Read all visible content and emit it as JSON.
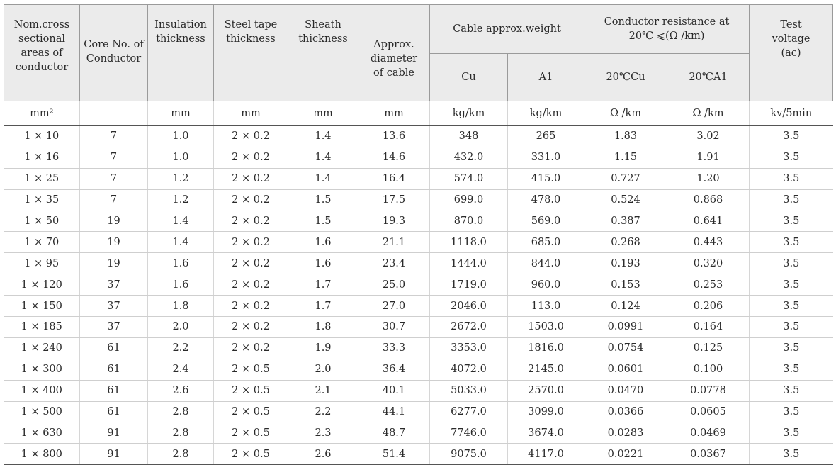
{
  "headers": {
    "nom_area": "Nom.cross sectional areas of conductor",
    "core_no": "Core No. of Conductor",
    "insulation": "Insulation thickness",
    "steel_tape": "Steel tape thickness",
    "sheath": "Sheath thickness",
    "diameter": "Approx. diameter of cable",
    "weight": "Cable approx.weight",
    "weight_cu": "Cu",
    "weight_al": "A1",
    "resistance": "Conductor resistance at 20℃ ⩽(Ω /km)",
    "res_cu": "20℃Cu",
    "res_al": "20℃A1",
    "test_voltage": "Test voltage (ac)"
  },
  "units": {
    "nom_area": "mm²",
    "core_no": "",
    "insulation": "mm",
    "steel_tape": "mm",
    "sheath": "mm",
    "diameter": "mm",
    "weight_cu": "kg/km",
    "weight_al": "kg/km",
    "res_cu": "Ω /km",
    "res_al": "Ω /km",
    "test_voltage": "kv/5min"
  },
  "rows": [
    [
      "1 × 10",
      "7",
      "1.0",
      "2 × 0.2",
      "1.4",
      "13.6",
      "348",
      "265",
      "1.83",
      "3.02",
      "3.5"
    ],
    [
      "1 × 16",
      "7",
      "1.0",
      "2 × 0.2",
      "1.4",
      "14.6",
      "432.0",
      "331.0",
      "1.15",
      "1.91",
      "3.5"
    ],
    [
      "1 × 25",
      "7",
      "1.2",
      "2 × 0.2",
      "1.4",
      "16.4",
      "574.0",
      "415.0",
      "0.727",
      "1.20",
      "3.5"
    ],
    [
      "1 × 35",
      "7",
      "1.2",
      "2 × 0.2",
      "1.5",
      "17.5",
      "699.0",
      "478.0",
      "0.524",
      "0.868",
      "3.5"
    ],
    [
      "1 × 50",
      "19",
      "1.4",
      "2 × 0.2",
      "1.5",
      "19.3",
      "870.0",
      "569.0",
      "0.387",
      "0.641",
      "3.5"
    ],
    [
      "1 × 70",
      "19",
      "1.4",
      "2 × 0.2",
      "1.6",
      "21.1",
      "1118.0",
      "685.0",
      "0.268",
      "0.443",
      "3.5"
    ],
    [
      "1 × 95",
      "19",
      "1.6",
      "2 × 0.2",
      "1.6",
      "23.4",
      "1444.0",
      "844.0",
      "0.193",
      "0.320",
      "3.5"
    ],
    [
      "1 × 120",
      "37",
      "1.6",
      "2 × 0.2",
      "1.7",
      "25.0",
      "1719.0",
      "960.0",
      "0.153",
      "0.253",
      "3.5"
    ],
    [
      "1 × 150",
      "37",
      "1.8",
      "2 × 0.2",
      "1.7",
      "27.0",
      "2046.0",
      "113.0",
      "0.124",
      "0.206",
      "3.5"
    ],
    [
      "1 × 185",
      "37",
      "2.0",
      "2 × 0.2",
      "1.8",
      "30.7",
      "2672.0",
      "1503.0",
      "0.0991",
      "0.164",
      "3.5"
    ],
    [
      "1 × 240",
      "61",
      "2.2",
      "2 × 0.2",
      "1.9",
      "33.3",
      "3353.0",
      "1816.0",
      "0.0754",
      "0.125",
      "3.5"
    ],
    [
      "1 × 300",
      "61",
      "2.4",
      "2 × 0.5",
      "2.0",
      "36.4",
      "4072.0",
      "2145.0",
      "0.0601",
      "0.100",
      "3.5"
    ],
    [
      "1 × 400",
      "61",
      "2.6",
      "2 × 0.5",
      "2.1",
      "40.1",
      "5033.0",
      "2570.0",
      "0.0470",
      "0.0778",
      "3.5"
    ],
    [
      "1 × 500",
      "61",
      "2.8",
      "2 × 0.5",
      "2.2",
      "44.1",
      "6277.0",
      "3099.0",
      "0.0366",
      "0.0605",
      "3.5"
    ],
    [
      "1 × 630",
      "91",
      "2.8",
      "2 × 0.5",
      "2.3",
      "48.7",
      "7746.0",
      "3674.0",
      "0.0283",
      "0.0469",
      "3.5"
    ],
    [
      "1 × 800",
      "91",
      "2.8",
      "2 × 0.5",
      "2.6",
      "51.4",
      "9075.0",
      "4117.0",
      "0.0221",
      "0.0367",
      "3.5"
    ]
  ]
}
